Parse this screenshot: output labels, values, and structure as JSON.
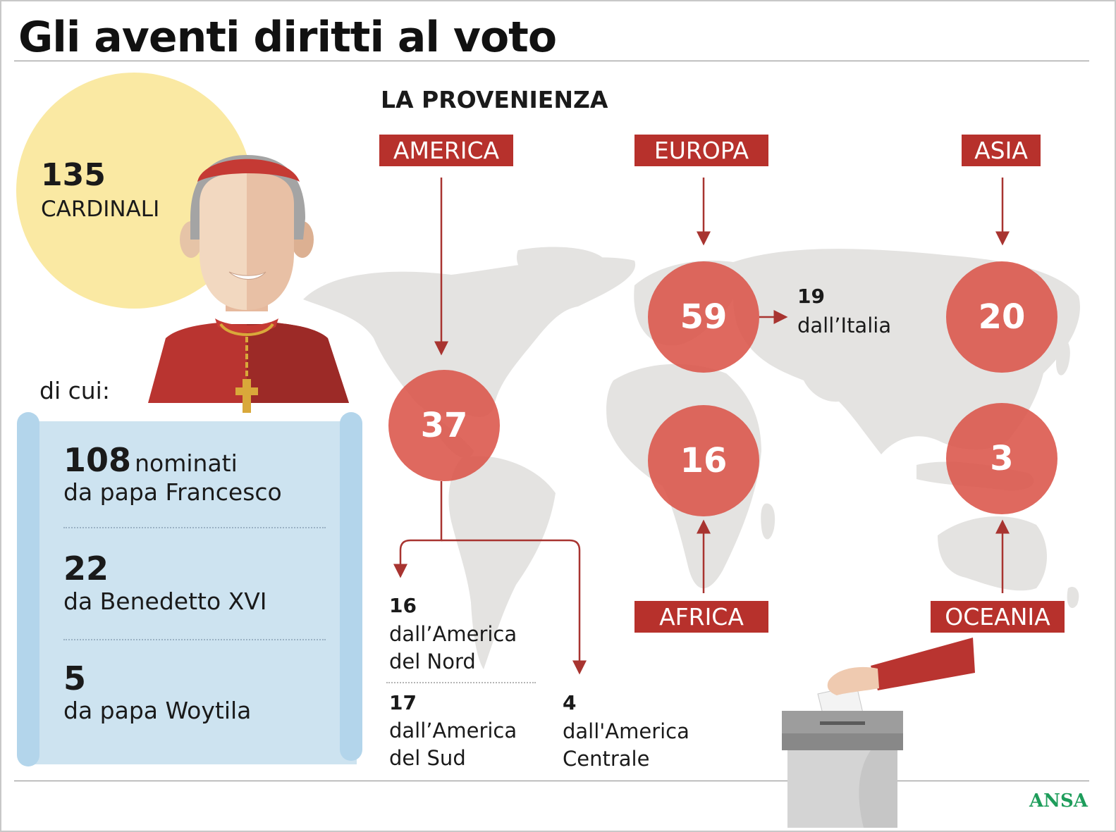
{
  "title": "Gli aventi diritti al voto",
  "total": {
    "number": "135",
    "label": "CARDINALI"
  },
  "di_cui": "di cui:",
  "breakdown": [
    {
      "number": "108",
      "suffix": "nominati",
      "text": "da papa Francesco"
    },
    {
      "number": "22",
      "text": "da Benedetto XVI"
    },
    {
      "number": "5",
      "text": "da papa Woytila"
    }
  ],
  "section_title": "LA PROVENIENZA",
  "regions": {
    "america": {
      "label": "AMERICA",
      "value": "37"
    },
    "europa": {
      "label": "EUROPA",
      "value": "59"
    },
    "asia": {
      "label": "ASIA",
      "value": "20"
    },
    "africa": {
      "label": "AFRICA",
      "value": "16"
    },
    "oceania": {
      "label": "OCEANIA",
      "value": "3"
    }
  },
  "italia": {
    "number": "19",
    "text": "dall’Italia"
  },
  "america_sub": {
    "nord": {
      "number": "16",
      "line1": "dall’America",
      "line2": "del Nord"
    },
    "sud": {
      "number": "17",
      "line1": "dall’America",
      "line2": "del Sud"
    },
    "centrale": {
      "number": "4",
      "line1": "dall'America",
      "line2": "Centrale"
    }
  },
  "source": "ANSA",
  "colors": {
    "accent": "#b7312c",
    "circle": "#db5449",
    "sun": "#fae9a3",
    "scroll": "#cde3f0",
    "map": "#e4e3e1",
    "source": "#1e9d5b"
  }
}
